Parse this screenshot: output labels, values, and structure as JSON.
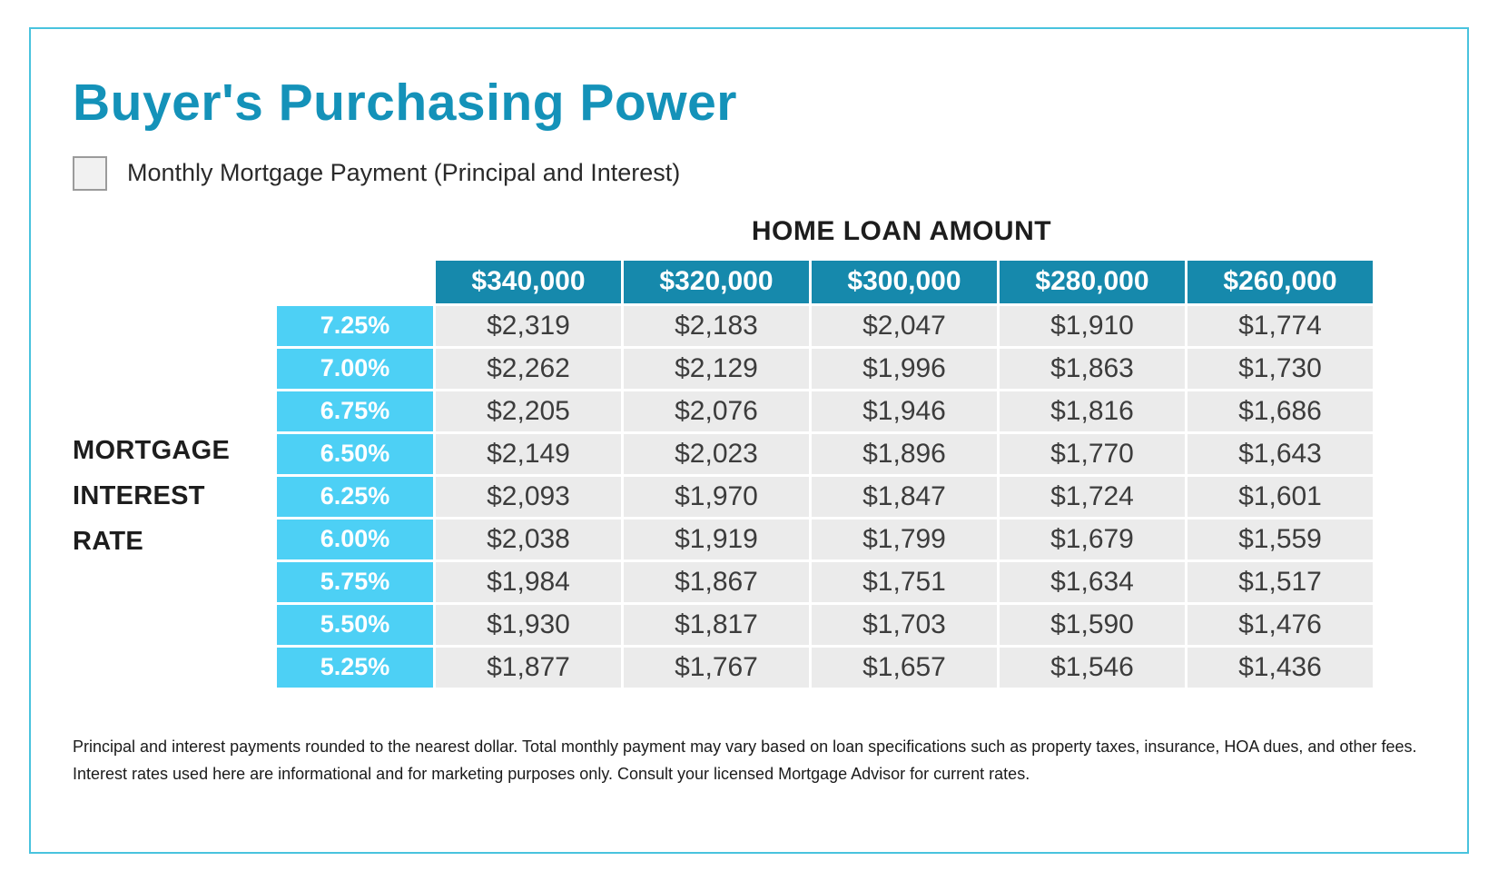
{
  "header": {
    "title": "Buyer's Purchasing Power",
    "legend_label": "Monthly Mortgage Payment (Principal and Interest)"
  },
  "table": {
    "column_group_label": "HOME LOAN AMOUNT",
    "row_group_label_lines": [
      "MORTGAGE",
      "INTEREST",
      "RATE"
    ],
    "columns": [
      "$340,000",
      "$320,000",
      "$300,000",
      "$280,000",
      "$260,000"
    ],
    "rows": [
      {
        "rate": "7.25%",
        "values": [
          "$2,319",
          "$2,183",
          "$2,047",
          "$1,910",
          "$1,774"
        ]
      },
      {
        "rate": "7.00%",
        "values": [
          "$2,262",
          "$2,129",
          "$1,996",
          "$1,863",
          "$1,730"
        ]
      },
      {
        "rate": "6.75%",
        "values": [
          "$2,205",
          "$2,076",
          "$1,946",
          "$1,816",
          "$1,686"
        ]
      },
      {
        "rate": "6.50%",
        "values": [
          "$2,149",
          "$2,023",
          "$1,896",
          "$1,770",
          "$1,643"
        ]
      },
      {
        "rate": "6.25%",
        "values": [
          "$2,093",
          "$1,970",
          "$1,847",
          "$1,724",
          "$1,601"
        ]
      },
      {
        "rate": "6.00%",
        "values": [
          "$2,038",
          "$1,919",
          "$1,799",
          "$1,679",
          "$1,559"
        ]
      },
      {
        "rate": "5.75%",
        "values": [
          "$1,984",
          "$1,867",
          "$1,751",
          "$1,634",
          "$1,517"
        ]
      },
      {
        "rate": "5.50%",
        "values": [
          "$1,930",
          "$1,817",
          "$1,703",
          "$1,590",
          "$1,476"
        ]
      },
      {
        "rate": "5.25%",
        "values": [
          "$1,877",
          "$1,767",
          "$1,657",
          "$1,546",
          "$1,436"
        ]
      }
    ]
  },
  "footer": {
    "line1": "Principal and interest payments rounded to the nearest dollar. Total monthly payment may vary based on loan specifications such as property taxes, insurance, HOA dues, and other fees.",
    "line2": "Interest rates used here are informational and for marketing purposes only. Consult your licensed Mortgage Advisor for current rates."
  },
  "colors": {
    "title_accent": "#1492b9",
    "column_header_bg": "#1689ac",
    "rate_cell_bg": "#4dd0f5",
    "data_cell_bg": "#ebebeb",
    "frame_border": "#49c3de"
  },
  "chart_data": {
    "type": "table",
    "title": "Buyer's Purchasing Power",
    "subtitle": "Monthly Mortgage Payment (Principal and Interest)",
    "column_group_header": "HOME LOAN AMOUNT",
    "row_group_header": "MORTGAGE INTEREST RATE",
    "columns": [
      "$340,000",
      "$320,000",
      "$300,000",
      "$280,000",
      "$260,000"
    ],
    "row_labels": [
      "7.25%",
      "7.00%",
      "6.75%",
      "6.50%",
      "6.25%",
      "6.00%",
      "5.75%",
      "5.50%",
      "5.25%"
    ],
    "values": [
      [
        2319,
        2183,
        2047,
        1910,
        1774
      ],
      [
        2262,
        2129,
        1996,
        1863,
        1730
      ],
      [
        2205,
        2076,
        1946,
        1816,
        1686
      ],
      [
        2149,
        2023,
        1896,
        1770,
        1643
      ],
      [
        2093,
        1970,
        1847,
        1724,
        1601
      ],
      [
        2038,
        1919,
        1799,
        1679,
        1559
      ],
      [
        1984,
        1867,
        1751,
        1634,
        1517
      ],
      [
        1930,
        1817,
        1703,
        1590,
        1476
      ],
      [
        1877,
        1767,
        1657,
        1546,
        1436
      ]
    ]
  }
}
